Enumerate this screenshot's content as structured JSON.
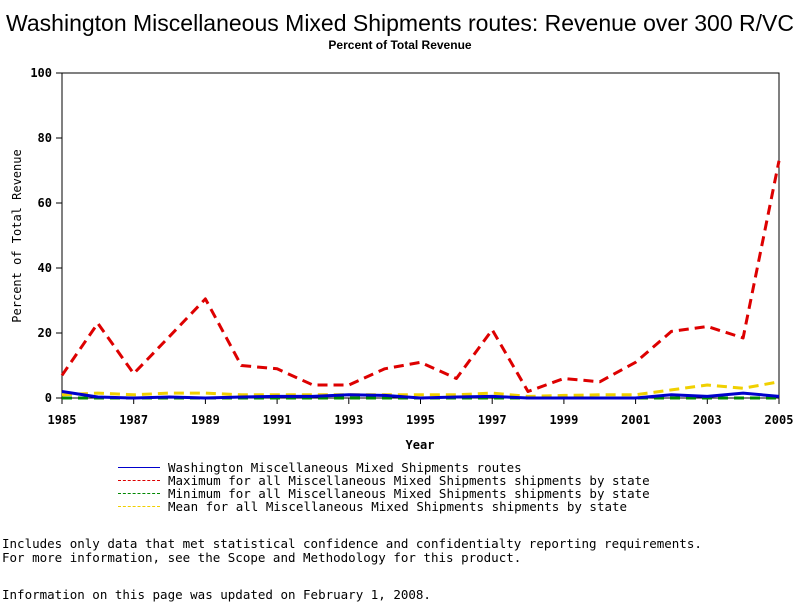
{
  "chart_data": {
    "type": "line",
    "title": "Washington Miscellaneous Mixed Shipments routes: Revenue over 300 R/VC",
    "subtitle": "Percent of Total Revenue",
    "xlabel": "Year",
    "ylabel": "Percent of Total Revenue",
    "xlim": [
      1985,
      2005
    ],
    "ylim": [
      0,
      100
    ],
    "xticks": [
      1985,
      1987,
      1989,
      1991,
      1993,
      1995,
      1997,
      1999,
      2001,
      2003,
      2005
    ],
    "yticks": [
      0,
      20,
      40,
      60,
      80,
      100
    ],
    "x": [
      1985,
      1986,
      1987,
      1988,
      1989,
      1990,
      1991,
      1992,
      1993,
      1994,
      1995,
      1996,
      1997,
      1998,
      1999,
      2000,
      2001,
      2002,
      2003,
      2004,
      2005
    ],
    "series": [
      {
        "name": "Washington Miscellaneous Mixed Shipments routes",
        "color": "#0000cc",
        "dash": "solid",
        "values": [
          2,
          0.3,
          0,
          0.3,
          0,
          0.3,
          0.5,
          0.5,
          1,
          0.8,
          0,
          0.3,
          0.5,
          0,
          0,
          0,
          0,
          1,
          0.5,
          1.5,
          0.5
        ]
      },
      {
        "name": "Maximum for all Miscellaneous Mixed Shipments shipments by state",
        "color": "#dd0000",
        "dash": "dashed",
        "values": [
          7,
          23,
          7.5,
          19,
          30.5,
          10,
          9,
          4,
          4,
          9,
          11,
          6,
          21,
          2,
          6,
          5,
          11,
          20.5,
          22,
          18.5,
          73
        ]
      },
      {
        "name": "Minimum for all Miscellaneous Mixed Shipments shipments by state",
        "color": "#008800",
        "dash": "dashed",
        "values": [
          0,
          0,
          0,
          0,
          0,
          0,
          0,
          0,
          0,
          0,
          0,
          0,
          0,
          0,
          0,
          0,
          0,
          0,
          0,
          0,
          0
        ]
      },
      {
        "name": "Mean for all Miscellaneous Mixed Shipments shipments by state",
        "color": "#f0d000",
        "dash": "dashed",
        "values": [
          1,
          1.5,
          1,
          1.5,
          1.5,
          1,
          1,
          1,
          1,
          1,
          1,
          1,
          1.5,
          0.5,
          0.8,
          1,
          1,
          2.5,
          4,
          3,
          5
        ]
      }
    ],
    "legend_position": "bottom",
    "grid": false
  },
  "notes": [
    "Includes only data that met statistical confidence and confidentialty reporting requirements.",
    "For more information, see the Scope and Methodology for this product."
  ],
  "updated": "Information on this page was updated on February 1, 2008."
}
